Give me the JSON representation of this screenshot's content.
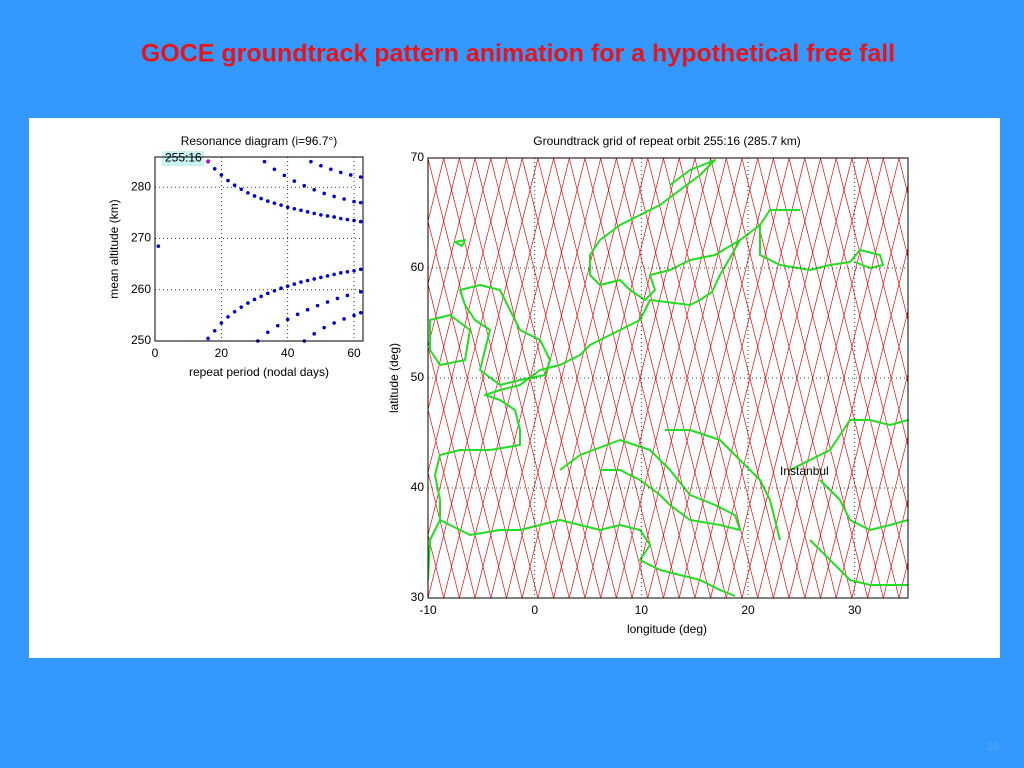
{
  "title": "GOCE groundtrack pattern animation for a hypothetical free fall",
  "page_number": "28",
  "chart_data": [
    {
      "type": "scatter",
      "title": "Resonance diagram (i=96.7°)",
      "x_label": "repeat period (nodal days)",
      "y_label": "mean altitude (km)",
      "annotation": "255:16",
      "xlim": [
        0,
        62.7
      ],
      "ylim": [
        250,
        285.9
      ],
      "xticks": [
        0,
        20,
        40,
        60
      ],
      "yticks": [
        250,
        260,
        270,
        280
      ],
      "grid": true,
      "series": [
        {
          "color": "#0000cc",
          "x": [
            16,
            18,
            20,
            22,
            24,
            26,
            28,
            30,
            32,
            34,
            36,
            38,
            40,
            42,
            44,
            46,
            48,
            50,
            52,
            54,
            56,
            58,
            60,
            62
          ],
          "y": [
            285,
            283.6,
            282.4,
            281.3,
            280.4,
            279.6,
            278.9,
            278.3,
            277.8,
            277.3,
            276.9,
            276.5,
            276.1,
            275.8,
            275.5,
            275.2,
            274.9,
            274.6,
            274.4,
            274.2,
            273.9,
            273.7,
            273.5,
            273.3
          ]
        },
        {
          "color": "#0000cc",
          "x": [
            16,
            18,
            20,
            22,
            24,
            26,
            28,
            30,
            32,
            34,
            36,
            38,
            40,
            42,
            44,
            46,
            48,
            50,
            52,
            54,
            56,
            58,
            60,
            62
          ],
          "y": [
            250.5,
            252,
            253.5,
            254.7,
            255.7,
            256.6,
            257.4,
            258.1,
            258.7,
            259.3,
            259.8,
            260.3,
            260.7,
            261.1,
            261.5,
            261.8,
            262.1,
            262.4,
            262.7,
            263,
            263.3,
            263.5,
            263.7,
            264
          ]
        },
        {
          "color": "#0000cc",
          "x": [
            33,
            36,
            39,
            42,
            45,
            48,
            51,
            54,
            57,
            60,
            62
          ],
          "y": [
            285,
            283.5,
            282.3,
            281.2,
            280.3,
            279.5,
            278.8,
            278.2,
            277.7,
            277.2,
            277
          ]
        },
        {
          "color": "#0000cc",
          "x": [
            47,
            50,
            53,
            56,
            59,
            62
          ],
          "y": [
            285,
            284.2,
            283.5,
            282.9,
            282.4,
            282
          ]
        },
        {
          "color": "#0000cc",
          "x": [
            31,
            34,
            37,
            40,
            43,
            46,
            49,
            52,
            55,
            58,
            62
          ],
          "y": [
            250,
            251.7,
            253,
            254.2,
            255.2,
            256.1,
            256.9,
            257.6,
            258.3,
            258.9,
            259.6
          ]
        },
        {
          "color": "#0000cc",
          "x": [
            45,
            48,
            51,
            54,
            57,
            60,
            62
          ],
          "y": [
            250,
            251.4,
            252.6,
            253.5,
            254.3,
            255,
            255.5
          ]
        },
        {
          "color": "#0000cc",
          "x": [
            1
          ],
          "y": [
            268.5
          ]
        },
        {
          "color": "#cc00cc",
          "x": [
            16
          ],
          "y": [
            285.1
          ]
        }
      ]
    },
    {
      "type": "map",
      "title": "Groundtrack grid of repeat orbit 255:16 (285.7 km)",
      "x_label": "longitude (deg)",
      "y_label": "latitude (deg)",
      "annotation": "Instanbul",
      "xlim": [
        -10,
        35
      ],
      "ylim": [
        30,
        70
      ],
      "xticks": [
        -10,
        0,
        10,
        20,
        30
      ],
      "yticks": [
        30,
        40,
        50,
        60,
        70
      ],
      "grid": true
    }
  ]
}
